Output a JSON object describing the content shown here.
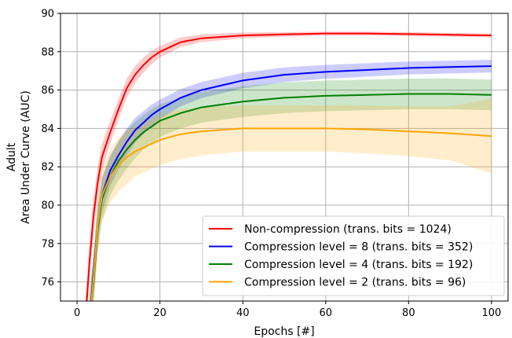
{
  "chart_data": {
    "type": "line",
    "xlabel": "Epochs [#]",
    "ylabel_lines": [
      "Adult",
      "Area Under Curve (AUC)"
    ],
    "xlim": [
      -4,
      104
    ],
    "ylim": [
      75,
      90
    ],
    "xticks": [
      0,
      20,
      40,
      60,
      80,
      100
    ],
    "yticks": [
      76,
      78,
      80,
      82,
      84,
      86,
      88,
      90
    ],
    "grid": true,
    "legend_position": "lower-right",
    "series": [
      {
        "name": "Non-compression (trans. bits = 1024)",
        "color": "#ff0000",
        "points": [
          [
            2,
            74
          ],
          [
            3,
            77
          ],
          [
            4,
            79.5
          ],
          [
            5,
            81.2
          ],
          [
            6,
            82.5
          ],
          [
            8,
            83.8
          ],
          [
            10,
            85
          ],
          [
            12,
            86.1
          ],
          [
            14,
            86.8
          ],
          [
            16,
            87.3
          ],
          [
            18,
            87.7
          ],
          [
            20,
            88.0
          ],
          [
            25,
            88.5
          ],
          [
            30,
            88.7
          ],
          [
            40,
            88.85
          ],
          [
            50,
            88.9
          ],
          [
            60,
            88.95
          ],
          [
            70,
            88.95
          ],
          [
            80,
            88.92
          ],
          [
            90,
            88.88
          ],
          [
            100,
            88.85
          ]
        ],
        "band": [
          0.9,
          1.0,
          0.9,
          0.8,
          0.7,
          0.6,
          0.55,
          0.5,
          0.45,
          0.4,
          0.35,
          0.3,
          0.25,
          0.2,
          0.15,
          0.12,
          0.1,
          0.1,
          0.1,
          0.1,
          0.1
        ]
      },
      {
        "name": "Compression level = 8 (trans. bits = 352)",
        "color": "#0000ff",
        "points": [
          [
            3,
            74
          ],
          [
            4,
            76.5
          ],
          [
            5,
            79
          ],
          [
            6,
            80.5
          ],
          [
            8,
            81.8
          ],
          [
            10,
            82.6
          ],
          [
            12,
            83.3
          ],
          [
            14,
            83.9
          ],
          [
            16,
            84.3
          ],
          [
            18,
            84.7
          ],
          [
            20,
            85.0
          ],
          [
            25,
            85.6
          ],
          [
            30,
            86.0
          ],
          [
            40,
            86.5
          ],
          [
            50,
            86.8
          ],
          [
            60,
            86.95
          ],
          [
            70,
            87.05
          ],
          [
            80,
            87.15
          ],
          [
            90,
            87.2
          ],
          [
            100,
            87.25
          ]
        ],
        "band": [
          1.2,
          1.1,
          1.0,
          0.9,
          0.8,
          0.75,
          0.7,
          0.65,
          0.6,
          0.55,
          0.5,
          0.45,
          0.42,
          0.4,
          0.38,
          0.36,
          0.35,
          0.34,
          0.33,
          0.33
        ]
      },
      {
        "name": "Compression level = 4 (trans. bits = 192)",
        "color": "#008000",
        "points": [
          [
            3,
            74
          ],
          [
            4,
            76
          ],
          [
            5,
            78.8
          ],
          [
            6,
            80.3
          ],
          [
            8,
            81.5
          ],
          [
            10,
            82.3
          ],
          [
            12,
            82.9
          ],
          [
            14,
            83.4
          ],
          [
            16,
            83.8
          ],
          [
            18,
            84.1
          ],
          [
            20,
            84.4
          ],
          [
            25,
            84.8
          ],
          [
            30,
            85.1
          ],
          [
            40,
            85.4
          ],
          [
            50,
            85.6
          ],
          [
            60,
            85.7
          ],
          [
            70,
            85.75
          ],
          [
            80,
            85.8
          ],
          [
            90,
            85.8
          ],
          [
            100,
            85.75
          ]
        ],
        "band": [
          1.3,
          1.3,
          1.2,
          1.1,
          1.0,
          1.0,
          1.0,
          0.95,
          0.9,
          0.9,
          0.85,
          0.8,
          0.8,
          0.8,
          0.8,
          0.8,
          0.8,
          0.8,
          0.8,
          0.8
        ]
      },
      {
        "name": "Compression level = 2 (trans. bits = 96)",
        "color": "#ffa500",
        "points": [
          [
            3,
            74
          ],
          [
            4,
            76.2
          ],
          [
            5,
            79
          ],
          [
            6,
            80.5
          ],
          [
            8,
            81.5
          ],
          [
            10,
            82.1
          ],
          [
            12,
            82.5
          ],
          [
            14,
            82.8
          ],
          [
            16,
            83.0
          ],
          [
            18,
            83.2
          ],
          [
            20,
            83.4
          ],
          [
            25,
            83.7
          ],
          [
            30,
            83.85
          ],
          [
            40,
            84.0
          ],
          [
            50,
            84.0
          ],
          [
            60,
            84.0
          ],
          [
            70,
            83.95
          ],
          [
            80,
            83.85
          ],
          [
            90,
            83.75
          ],
          [
            100,
            83.6
          ]
        ],
        "band": [
          1.4,
          1.4,
          1.4,
          1.4,
          1.4,
          1.4,
          1.4,
          1.3,
          1.3,
          1.3,
          1.3,
          1.3,
          1.25,
          1.2,
          1.2,
          1.2,
          1.25,
          1.3,
          1.4,
          1.95
        ]
      }
    ]
  }
}
